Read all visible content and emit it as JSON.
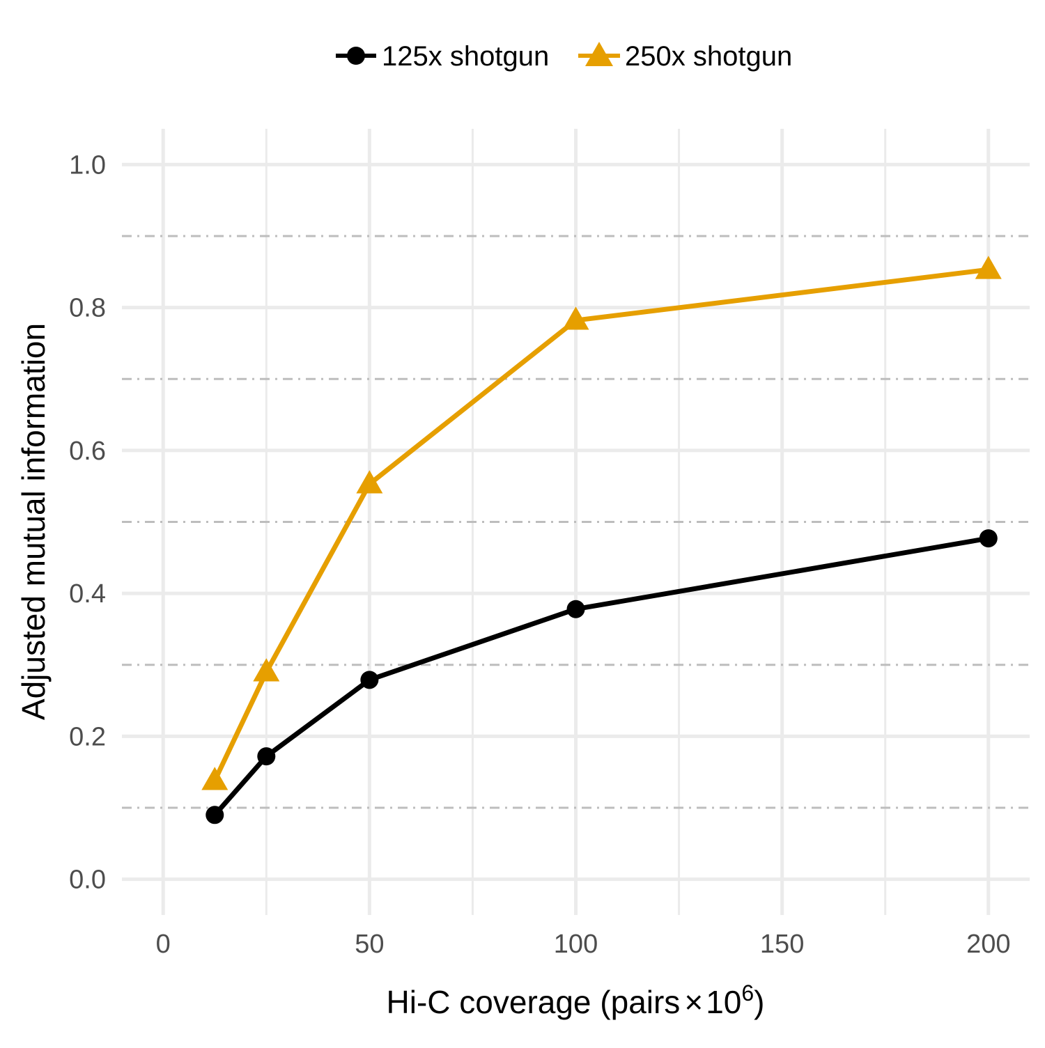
{
  "chart_data": {
    "type": "line",
    "xlabel_main": "Hi-C coverage (pairs",
    "xlabel_times": "×",
    "xlabel_base": "10",
    "xlabel_exp": "6",
    "xlabel_close": ")",
    "ylabel": "Adjusted mutual information",
    "xlim": [
      -10,
      210
    ],
    "ylim": [
      -0.05,
      1.05
    ],
    "x_ticks": [
      0,
      50,
      100,
      150,
      200
    ],
    "x_tick_labels": [
      "0",
      "50",
      "100",
      "150",
      "200"
    ],
    "x_minor_ticks": [
      25,
      75,
      125,
      175
    ],
    "y_ticks": [
      0.0,
      0.2,
      0.4,
      0.6,
      0.8,
      1.0
    ],
    "y_tick_labels": [
      "0.0",
      "0.2",
      "0.4",
      "0.6",
      "0.8",
      "1.0"
    ],
    "y_minor_dashed": [
      0.1,
      0.3,
      0.5,
      0.7,
      0.9
    ],
    "grid": true,
    "legend_position": "top",
    "series": [
      {
        "name": "125x shotgun",
        "color": "#000000",
        "marker": "circle",
        "x": [
          12.5,
          25,
          50,
          100,
          200
        ],
        "y": [
          0.09,
          0.172,
          0.279,
          0.378,
          0.477
        ]
      },
      {
        "name": "250x shotgun",
        "color": "#E69F00",
        "marker": "triangle",
        "x": [
          12.5,
          25,
          50,
          100,
          200
        ],
        "y": [
          0.138,
          0.29,
          0.553,
          0.782,
          0.853
        ]
      }
    ]
  }
}
